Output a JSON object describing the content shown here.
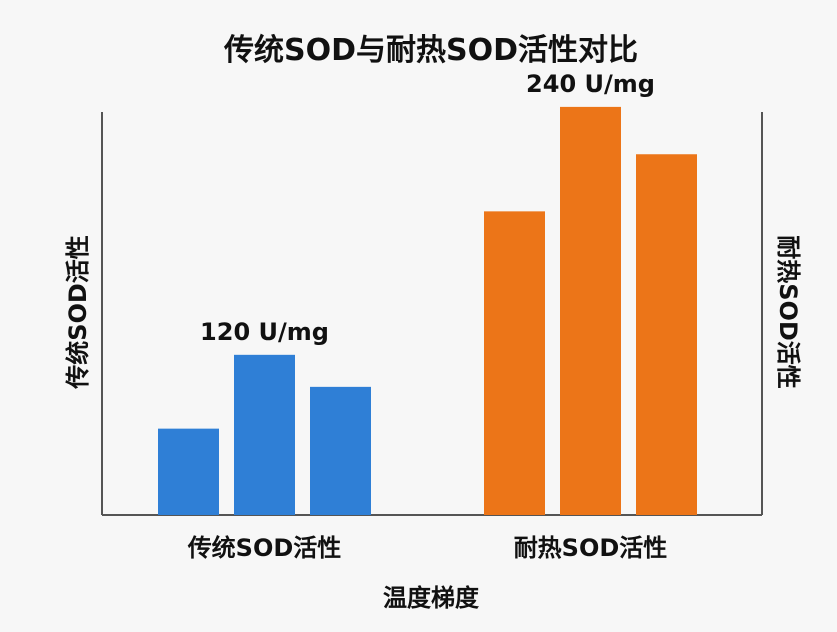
{
  "chart_data": {
    "type": "bar",
    "title": "传统SOD与耐热SOD活性对比",
    "xlabel": "温度梯度",
    "ylabel_left": "传统SOD活性",
    "ylabel_right": "耐热SOD活性",
    "ylim": [
      0,
      280
    ],
    "grid": false,
    "legend": "none",
    "groups": [
      {
        "label": "传统SOD活性",
        "color": "#2f7fd6",
        "values": [
          62,
          115,
          92
        ],
        "annotation": "120 U/mg"
      },
      {
        "label": "耐热SOD活性",
        "color": "#ec7518",
        "values": [
          218,
          293,
          259
        ],
        "annotation": "240 U/mg"
      }
    ]
  }
}
